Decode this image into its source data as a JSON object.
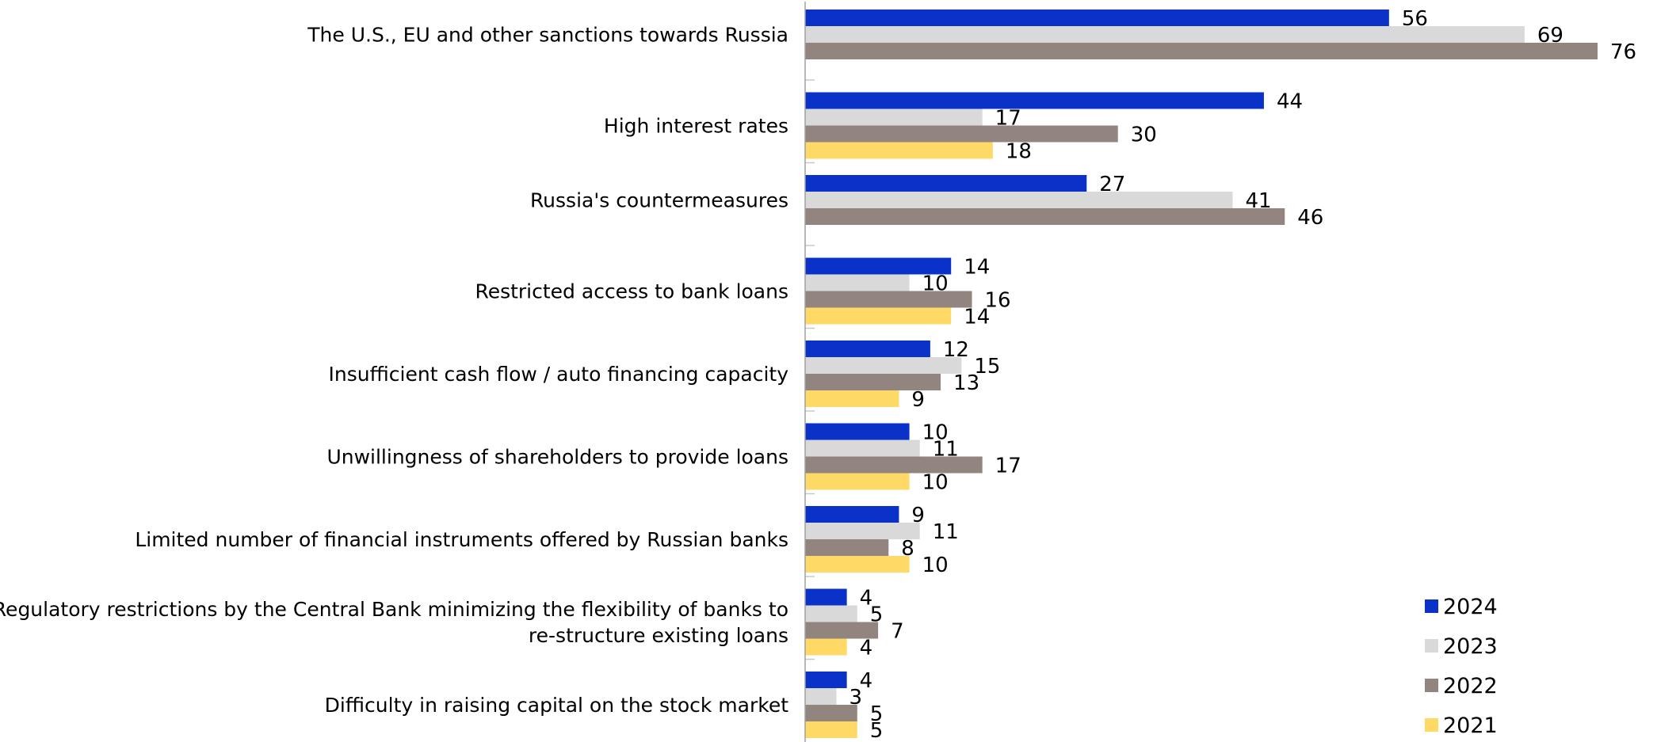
{
  "chart_data": {
    "type": "bar",
    "orientation": "horizontal",
    "title": "",
    "xlabel": "",
    "ylabel": "",
    "xlim": [
      0,
      80
    ],
    "grid": false,
    "legend_position": "bottom-right",
    "categories": [
      "The U.S., EU and other sanctions towards Russia",
      "High interest rates",
      "Russia's countermeasures",
      "Restricted access to bank loans",
      "Insufficient cash flow / auto financing capacity",
      "Unwillingness of shareholders to provide loans",
      "Limited number of financial instruments offered by Russian banks",
      "Regulatory restrictions by the Central Bank minimizing the flexibility of banks to re-structure existing loans",
      "Difficulty in raising capital on the stock market"
    ],
    "category_lines": [
      [
        "The U.S., EU and other sanctions towards Russia"
      ],
      [
        "High interest rates"
      ],
      [
        "Russia's countermeasures"
      ],
      [
        "Restricted access to bank loans"
      ],
      [
        "Insufficient cash flow / auto financing capacity"
      ],
      [
        "Unwillingness of shareholders to provide loans"
      ],
      [
        "Limited number of financial instruments offered by Russian banks"
      ],
      [
        "Regulatory restrictions by the Central Bank minimizing the flexibility of banks to",
        "re-structure existing loans"
      ],
      [
        "Difficulty in raising capital on the stock market"
      ]
    ],
    "series": [
      {
        "name": "2024",
        "color": "#0a32c8",
        "values": [
          56,
          44,
          27,
          14,
          12,
          10,
          9,
          4,
          4
        ]
      },
      {
        "name": "2023",
        "color": "#d9d9d9",
        "values": [
          69,
          17,
          41,
          10,
          15,
          11,
          11,
          5,
          3
        ]
      },
      {
        "name": "2022",
        "color": "#928580",
        "values": [
          76,
          30,
          46,
          16,
          13,
          17,
          8,
          7,
          5
        ]
      },
      {
        "name": "2021",
        "color": "#ffd966",
        "values": [
          null,
          18,
          null,
          14,
          9,
          10,
          10,
          4,
          5
        ]
      }
    ]
  }
}
